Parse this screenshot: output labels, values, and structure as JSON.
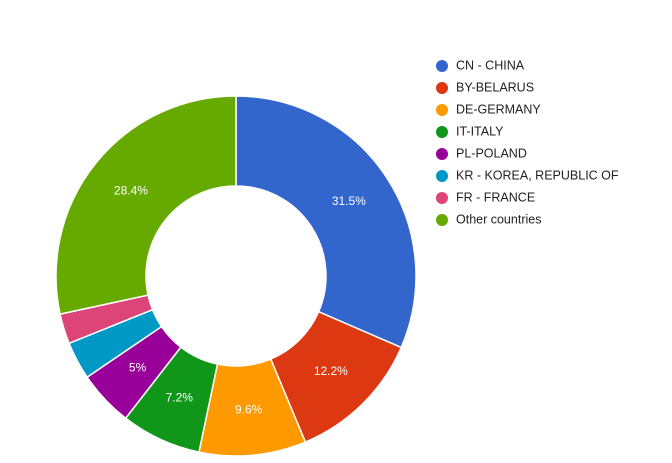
{
  "chart_data": {
    "type": "donut",
    "categories": [
      "CN - CHINA",
      "BY-BELARUS",
      "DE-GERMANY",
      "IT-ITALY",
      "PL-POLAND",
      "KR - KOREA, REPUBLIC OF",
      "FR - FRANCE",
      "Other countries"
    ],
    "values": [
      31.5,
      12.2,
      9.6,
      7.2,
      5,
      3.4,
      2.7,
      28.4
    ],
    "value_labels": [
      "31.5%",
      "12.2%",
      "9.6%",
      "7.2%",
      "5%",
      null,
      null,
      "28.4%"
    ],
    "colors": [
      "#3366cc",
      "#dc3912",
      "#ff9900",
      "#109618",
      "#990099",
      "#0099c6",
      "#dd4477",
      "#66aa00"
    ],
    "legend": "right"
  }
}
